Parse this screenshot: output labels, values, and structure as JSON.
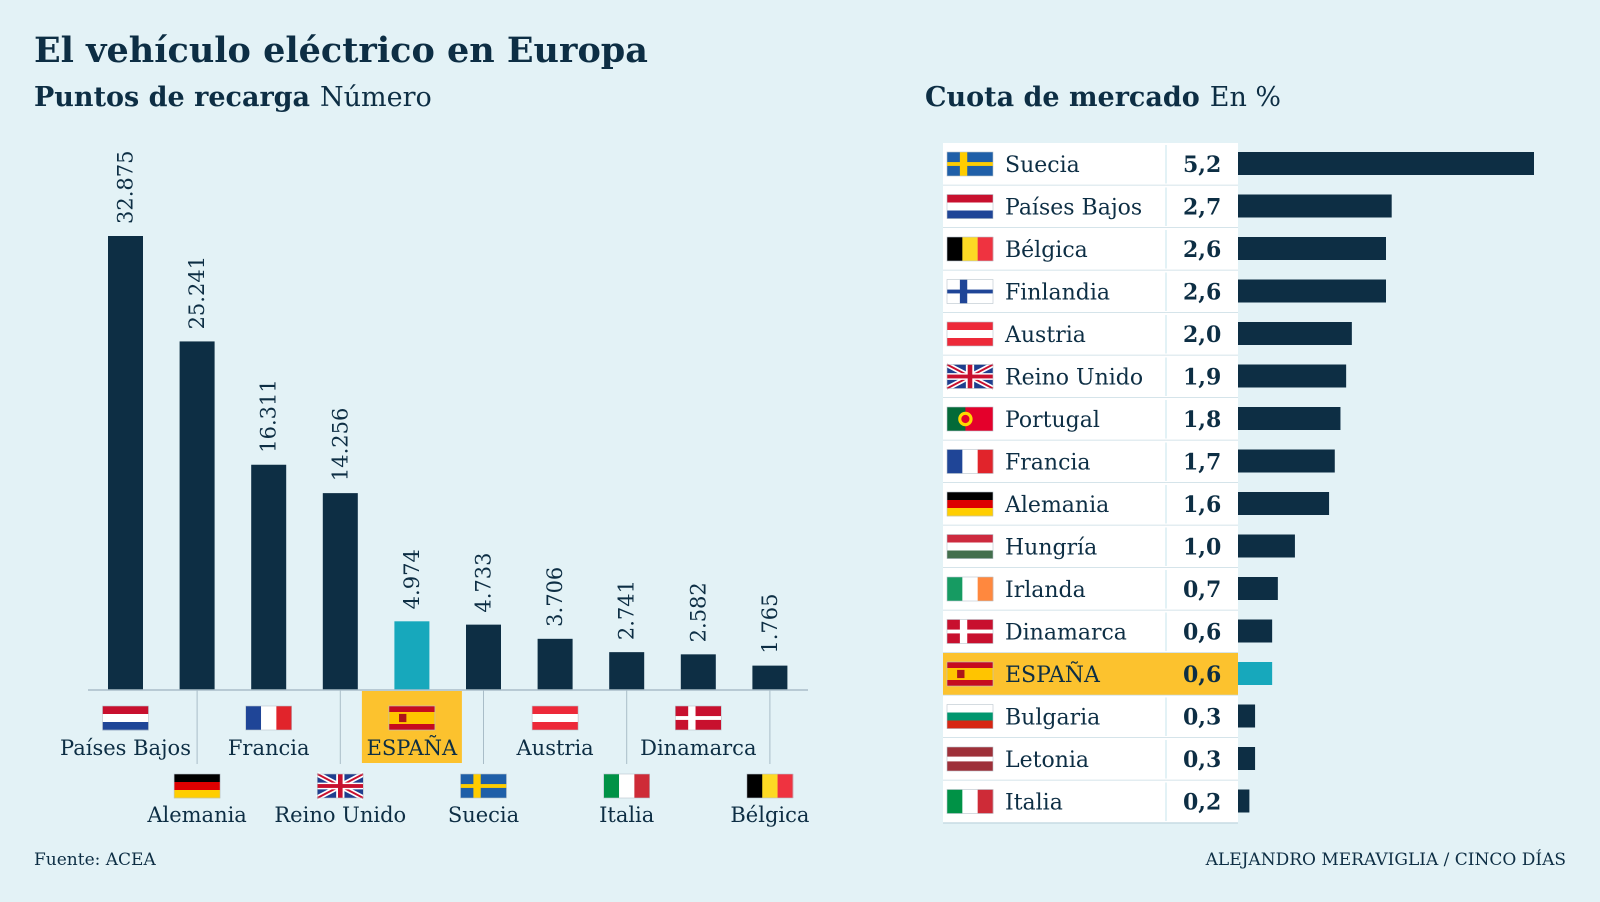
{
  "title": "El vehículo eléctrico en Europa",
  "left_subtitle": "Puntos de recarga",
  "left_unit": "Número",
  "right_subtitle": "Cuota de mercado",
  "right_unit": "En %",
  "source": "Fuente: ACEA",
  "credit": "ALEJANDRO MERAVIGLIA / CINCO DÍAS",
  "colors": {
    "bar": "#0d2e44",
    "highlight_bar": "#17a8bc",
    "highlight_bg": "#fcc22e",
    "background": "#e3f2f6"
  },
  "chart_data": [
    {
      "type": "bar",
      "title": "Puntos de recarga",
      "unit": "Número",
      "categories": [
        "Países Bajos",
        "Alemania",
        "Francia",
        "Reino Unido",
        "ESPAÑA",
        "Suecia",
        "Austria",
        "Italia",
        "Dinamarca",
        "Bélgica"
      ],
      "values": [
        32875,
        25241,
        16311,
        14256,
        4974,
        4733,
        3706,
        2741,
        2582,
        1765
      ],
      "value_labels": [
        "32.875",
        "25.241",
        "16.311",
        "14.256",
        "4.974",
        "4.733",
        "3.706",
        "2.741",
        "2.582",
        "1.765"
      ],
      "flags": [
        "nl",
        "de",
        "fr",
        "gb",
        "es",
        "se",
        "at",
        "it",
        "dk",
        "be"
      ],
      "highlight": "ESPAÑA",
      "ylim": [
        0,
        32875
      ],
      "grid": false
    },
    {
      "type": "bar",
      "orientation": "horizontal",
      "title": "Cuota de mercado",
      "unit": "En %",
      "categories": [
        "Suecia",
        "Países Bajos",
        "Bélgica",
        "Finlandia",
        "Austria",
        "Reino Unido",
        "Portugal",
        "Francia",
        "Alemania",
        "Hungría",
        "Irlanda",
        "Dinamarca",
        "ESPAÑA",
        "Bulgaria",
        "Letonia",
        "Italia"
      ],
      "values": [
        5.2,
        2.7,
        2.6,
        2.6,
        2.0,
        1.9,
        1.8,
        1.7,
        1.6,
        1.0,
        0.7,
        0.6,
        0.6,
        0.3,
        0.3,
        0.2
      ],
      "value_labels": [
        "5,2",
        "2,7",
        "2,6",
        "2,6",
        "2,0",
        "1,9",
        "1,8",
        "1,7",
        "1,6",
        "1,0",
        "0,7",
        "0,6",
        "0,6",
        "0,3",
        "0,3",
        "0,2"
      ],
      "flags": [
        "se",
        "nl",
        "be",
        "fi",
        "at",
        "gb",
        "pt",
        "fr",
        "de",
        "hu",
        "ie",
        "dk",
        "es",
        "bg",
        "lv",
        "it"
      ],
      "highlight": "ESPAÑA",
      "xlim": [
        0,
        5.2
      ],
      "grid": false
    }
  ]
}
